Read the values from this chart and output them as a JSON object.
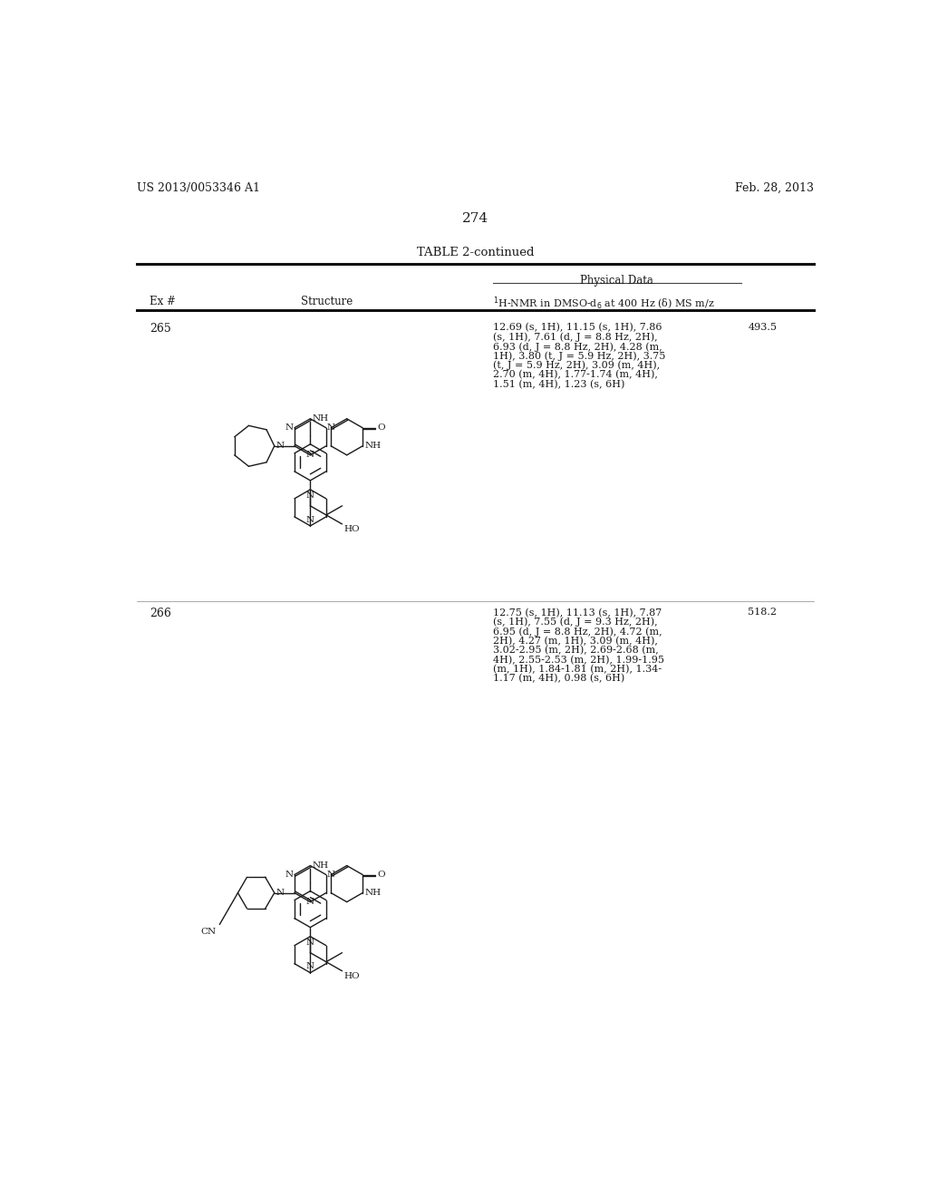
{
  "background_color": "#ffffff",
  "page_header_left": "US 2013/0053346 A1",
  "page_header_right": "Feb. 28, 2013",
  "page_number": "274",
  "table_title": "TABLE 2-continued",
  "col_headers": [
    "Ex #",
    "Structure",
    "1H-NMR in DMSO-d6 at 400 Hz (d) MS m/z"
  ],
  "physical_data_header": "Physical Data",
  "rows": [
    {
      "ex_num": "265",
      "nmr_data": "12.69 (s, 1H), 11.15 (s, 1H), 7.86\n(s, 1H), 7.61 (d, J = 8.8 Hz, 2H),\n6.93 (d, J = 8.8 Hz, 2H), 4.28 (m,\n1H), 3.80 (t, J = 5.9 Hz, 2H), 3.75\n(t, J = 5.9 Hz, 2H), 3.09 (m, 4H),\n2.70 (m, 4H), 1.77-1.74 (m, 4H),\n1.51 (m, 4H), 1.23 (s, 6H)",
      "ms": "493.5"
    },
    {
      "ex_num": "266",
      "nmr_data": "12.75 (s, 1H), 11.13 (s, 1H), 7.87\n(s, 1H), 7.55 (d, J = 9.3 Hz, 2H),\n6.95 (d, J = 8.8 Hz, 2H), 4.72 (m,\n2H), 4.27 (m, 1H), 3.09 (m, 4H),\n3.02-2.95 (m, 2H), 2.69-2.68 (m,\n4H), 2.55-2.53 (m, 2H), 1.99-1.95\n(m, 1H), 1.84-1.81 (m, 2H), 1.34-\n1.17 (m, 4H), 0.98 (s, 6H)",
      "ms": "518.2"
    }
  ]
}
